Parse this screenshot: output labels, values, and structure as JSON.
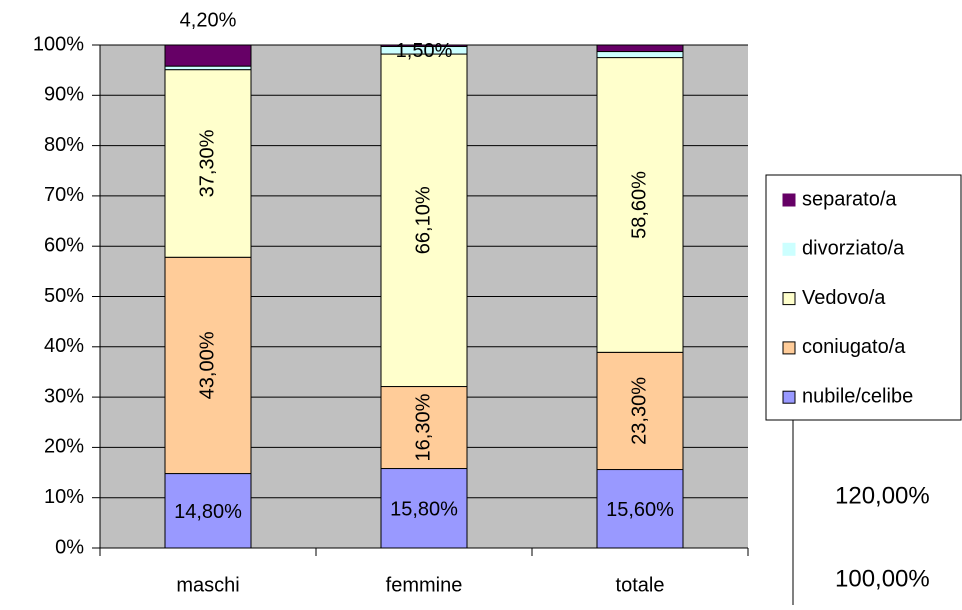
{
  "chart_data": {
    "type": "stacked_bar",
    "categories": [
      "maschi",
      "femmine",
      "totale"
    ],
    "series": [
      {
        "name": "nubile/celibe",
        "color": "#9999ff",
        "values": [
          14.8,
          15.8,
          15.6
        ],
        "value_labels": [
          "14,80%",
          "15,80%",
          "15,60%"
        ]
      },
      {
        "name": "coniugato/a",
        "color": "#ffcc99",
        "values": [
          43.0,
          16.3,
          23.3
        ],
        "value_labels": [
          "43,00%",
          "16,30%",
          "23,30%"
        ]
      },
      {
        "name": "Vedovo/a",
        "color": "#ffffcc",
        "values": [
          37.3,
          66.1,
          58.6
        ],
        "value_labels": [
          "37,30%",
          "66,10%",
          "58,60%"
        ]
      },
      {
        "name": "divorziato/a",
        "color": "#ccffff",
        "values": [
          0.7,
          1.5,
          1.2
        ],
        "value_labels": [
          null,
          "1,50%",
          null
        ]
      },
      {
        "name": "separato/a",
        "color": "#660066",
        "values": [
          4.2,
          0.3,
          1.3
        ],
        "value_labels": [
          "4,20%",
          null,
          null
        ]
      }
    ],
    "ylim": [
      0,
      100
    ],
    "yticks": [
      {
        "value": 0,
        "label": "0%"
      },
      {
        "value": 10,
        "label": "10%"
      },
      {
        "value": 20,
        "label": "20%"
      },
      {
        "value": 30,
        "label": "30%"
      },
      {
        "value": 40,
        "label": "40%"
      },
      {
        "value": 50,
        "label": "50%"
      },
      {
        "value": 60,
        "label": "60%"
      },
      {
        "value": 70,
        "label": "70%"
      },
      {
        "value": 80,
        "label": "80%"
      },
      {
        "value": 90,
        "label": "90%"
      },
      {
        "value": 100,
        "label": "100%"
      }
    ],
    "grid": true,
    "plot_background": "#c0c0c0",
    "legend": "right"
  },
  "clipped_chart": {
    "labels": [
      "120,00%",
      "100,00%"
    ]
  }
}
